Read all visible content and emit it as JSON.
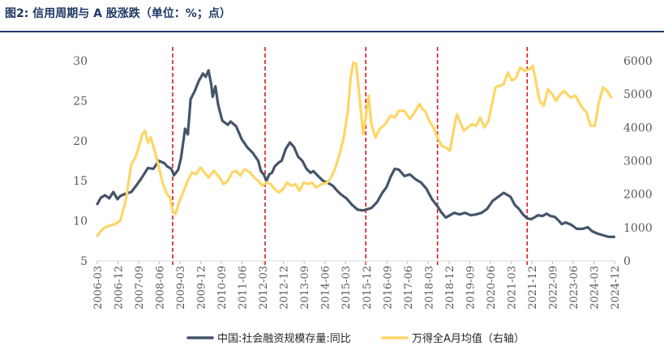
{
  "figure_title": "图2:  信用周期与 A 股涨跌（单位：%；点）",
  "chart_data": {
    "type": "line",
    "title": "信用周期与 A 股涨跌（单位：%；点）",
    "x_tick_labels": [
      "2006-03",
      "2006-12",
      "2007-09",
      "2008-06",
      "2009-03",
      "2009-12",
      "2010-09",
      "2011-06",
      "2012-03",
      "2012-12",
      "2013-09",
      "2014-06",
      "2015-03",
      "2015-12",
      "2016-09",
      "2017-06",
      "2018-03",
      "2018-12",
      "2019-09",
      "2020-06",
      "2021-03",
      "2021-12",
      "2022-09",
      "2023-06",
      "2024-03",
      "2024-12"
    ],
    "x_range": [
      2006.167,
      2024.917
    ],
    "y_left": {
      "label": "%",
      "range": [
        5,
        30
      ],
      "ticks": [
        5,
        10,
        15,
        20,
        25,
        30
      ],
      "tick_labels": [
        "5",
        "10",
        "15",
        "20",
        "25",
        "30"
      ]
    },
    "y_right": {
      "label": "点",
      "range": [
        0,
        6000
      ],
      "ticks": [
        0,
        1000,
        2000,
        3000,
        4000,
        5000,
        6000
      ],
      "tick_labels": [
        "0",
        "1000",
        "2000",
        "3000",
        "4000",
        "5000",
        "6000"
      ]
    },
    "vertical_markers": {
      "style": "dashed",
      "color": "#d7191c",
      "x": [
        2008.9,
        2012.25,
        2015.9,
        2018.5,
        2021.75
      ]
    },
    "series": [
      {
        "name": "中国:社会融资规模存量:同比",
        "axis": "left",
        "color": "#44546a",
        "points": [
          [
            2006.17,
            12.1
          ],
          [
            2006.3,
            12.9
          ],
          [
            2006.45,
            13.2
          ],
          [
            2006.6,
            12.8
          ],
          [
            2006.75,
            13.6
          ],
          [
            2006.9,
            12.7
          ],
          [
            2007.0,
            13.1
          ],
          [
            2007.2,
            13.4
          ],
          [
            2007.4,
            13.6
          ],
          [
            2007.6,
            14.5
          ],
          [
            2007.8,
            15.5
          ],
          [
            2008.0,
            16.6
          ],
          [
            2008.2,
            16.5
          ],
          [
            2008.4,
            17.5
          ],
          [
            2008.6,
            17.2
          ],
          [
            2008.7,
            16.8
          ],
          [
            2008.85,
            16.5
          ],
          [
            2008.95,
            15.7
          ],
          [
            2009.1,
            16.4
          ],
          [
            2009.2,
            17.8
          ],
          [
            2009.35,
            21.5
          ],
          [
            2009.45,
            20.8
          ],
          [
            2009.55,
            25.2
          ],
          [
            2009.7,
            26.2
          ],
          [
            2009.85,
            27.5
          ],
          [
            2010.0,
            28.4
          ],
          [
            2010.1,
            28.0
          ],
          [
            2010.2,
            28.8
          ],
          [
            2010.3,
            27.0
          ],
          [
            2010.35,
            25.5
          ],
          [
            2010.45,
            26.8
          ],
          [
            2010.55,
            24.5
          ],
          [
            2010.7,
            22.5
          ],
          [
            2010.9,
            22.0
          ],
          [
            2011.0,
            22.4
          ],
          [
            2011.2,
            21.8
          ],
          [
            2011.4,
            20.2
          ],
          [
            2011.6,
            19.2
          ],
          [
            2011.8,
            18.5
          ],
          [
            2012.0,
            17.5
          ],
          [
            2012.1,
            16.2
          ],
          [
            2012.2,
            15.8
          ],
          [
            2012.3,
            15.0
          ],
          [
            2012.4,
            15.8
          ],
          [
            2012.5,
            16.0
          ],
          [
            2012.6,
            16.8
          ],
          [
            2012.75,
            17.3
          ],
          [
            2012.85,
            17.5
          ],
          [
            2013.0,
            19.0
          ],
          [
            2013.15,
            19.8
          ],
          [
            2013.3,
            19.2
          ],
          [
            2013.45,
            18.0
          ],
          [
            2013.6,
            17.5
          ],
          [
            2013.75,
            16.5
          ],
          [
            2013.9,
            16.0
          ],
          [
            2014.0,
            16.2
          ],
          [
            2014.2,
            15.5
          ],
          [
            2014.35,
            15.0
          ],
          [
            2014.5,
            14.8
          ],
          [
            2014.6,
            14.6
          ],
          [
            2014.7,
            14.4
          ],
          [
            2014.85,
            13.8
          ],
          [
            2015.0,
            13.3
          ],
          [
            2015.2,
            12.8
          ],
          [
            2015.4,
            12.0
          ],
          [
            2015.6,
            11.4
          ],
          [
            2015.8,
            11.3
          ],
          [
            2016.0,
            11.5
          ],
          [
            2016.1,
            11.6
          ],
          [
            2016.3,
            12.3
          ],
          [
            2016.5,
            13.5
          ],
          [
            2016.65,
            14.2
          ],
          [
            2016.8,
            15.5
          ],
          [
            2016.95,
            16.5
          ],
          [
            2017.1,
            16.4
          ],
          [
            2017.3,
            15.6
          ],
          [
            2017.5,
            15.8
          ],
          [
            2017.7,
            15.2
          ],
          [
            2017.9,
            14.8
          ],
          [
            2018.1,
            14.0
          ],
          [
            2018.3,
            12.7
          ],
          [
            2018.5,
            11.8
          ],
          [
            2018.65,
            11.0
          ],
          [
            2018.8,
            10.4
          ],
          [
            2018.95,
            10.7
          ],
          [
            2019.1,
            11.0
          ],
          [
            2019.3,
            10.8
          ],
          [
            2019.5,
            11.0
          ],
          [
            2019.7,
            10.7
          ],
          [
            2019.9,
            10.8
          ],
          [
            2020.1,
            11.0
          ],
          [
            2020.3,
            11.5
          ],
          [
            2020.5,
            12.5
          ],
          [
            2020.7,
            13.0
          ],
          [
            2020.9,
            13.5
          ],
          [
            2021.0,
            13.3
          ],
          [
            2021.15,
            13.0
          ],
          [
            2021.3,
            12.0
          ],
          [
            2021.45,
            11.5
          ],
          [
            2021.6,
            10.8
          ],
          [
            2021.75,
            10.3
          ],
          [
            2021.9,
            10.2
          ],
          [
            2022.0,
            10.4
          ],
          [
            2022.15,
            10.7
          ],
          [
            2022.3,
            10.6
          ],
          [
            2022.45,
            10.9
          ],
          [
            2022.6,
            10.6
          ],
          [
            2022.75,
            10.5
          ],
          [
            2022.9,
            10.0
          ],
          [
            2023.0,
            9.6
          ],
          [
            2023.15,
            9.8
          ],
          [
            2023.35,
            9.5
          ],
          [
            2023.55,
            9.0
          ],
          [
            2023.75,
            9.0
          ],
          [
            2023.95,
            9.2
          ],
          [
            2024.1,
            8.7
          ],
          [
            2024.3,
            8.4
          ],
          [
            2024.5,
            8.2
          ],
          [
            2024.7,
            8.0
          ],
          [
            2024.9,
            8.0
          ]
        ]
      },
      {
        "name": "万得全A月均值（右轴）",
        "axis": "right",
        "color": "#fdd667",
        "points": [
          [
            2006.17,
            750
          ],
          [
            2006.3,
            900
          ],
          [
            2006.45,
            1000
          ],
          [
            2006.6,
            1050
          ],
          [
            2006.8,
            1100
          ],
          [
            2007.0,
            1200
          ],
          [
            2007.2,
            1800
          ],
          [
            2007.4,
            2900
          ],
          [
            2007.55,
            3100
          ],
          [
            2007.7,
            3500
          ],
          [
            2007.8,
            3800
          ],
          [
            2007.9,
            3900
          ],
          [
            2008.0,
            3550
          ],
          [
            2008.1,
            3700
          ],
          [
            2008.25,
            3300
          ],
          [
            2008.4,
            2800
          ],
          [
            2008.55,
            2300
          ],
          [
            2008.7,
            2000
          ],
          [
            2008.8,
            1900
          ],
          [
            2008.9,
            1500
          ],
          [
            2009.0,
            1400
          ],
          [
            2009.15,
            1800
          ],
          [
            2009.3,
            2100
          ],
          [
            2009.45,
            2400
          ],
          [
            2009.6,
            2650
          ],
          [
            2009.75,
            2600
          ],
          [
            2009.9,
            2800
          ],
          [
            2010.05,
            2650
          ],
          [
            2010.2,
            2500
          ],
          [
            2010.4,
            2700
          ],
          [
            2010.6,
            2500
          ],
          [
            2010.75,
            2300
          ],
          [
            2010.9,
            2400
          ],
          [
            2011.05,
            2650
          ],
          [
            2011.2,
            2700
          ],
          [
            2011.35,
            2550
          ],
          [
            2011.5,
            2750
          ],
          [
            2011.7,
            2650
          ],
          [
            2011.85,
            2500
          ],
          [
            2012.0,
            2400
          ],
          [
            2012.15,
            2250
          ],
          [
            2012.3,
            2350
          ],
          [
            2012.45,
            2300
          ],
          [
            2012.6,
            2150
          ],
          [
            2012.75,
            2050
          ],
          [
            2012.9,
            2150
          ],
          [
            2013.05,
            2350
          ],
          [
            2013.2,
            2250
          ],
          [
            2013.35,
            2300
          ],
          [
            2013.5,
            2100
          ],
          [
            2013.65,
            2350
          ],
          [
            2013.8,
            2300
          ],
          [
            2013.95,
            2350
          ],
          [
            2014.1,
            2200
          ],
          [
            2014.3,
            2300
          ],
          [
            2014.5,
            2350
          ],
          [
            2014.65,
            2500
          ],
          [
            2014.8,
            2800
          ],
          [
            2014.95,
            3200
          ],
          [
            2015.1,
            3700
          ],
          [
            2015.25,
            4500
          ],
          [
            2015.35,
            5500
          ],
          [
            2015.45,
            5950
          ],
          [
            2015.55,
            5900
          ],
          [
            2015.65,
            5100
          ],
          [
            2015.8,
            3800
          ],
          [
            2015.9,
            4300
          ],
          [
            2016.0,
            4950
          ],
          [
            2016.1,
            4100
          ],
          [
            2016.25,
            3700
          ],
          [
            2016.4,
            3950
          ],
          [
            2016.6,
            4100
          ],
          [
            2016.8,
            4350
          ],
          [
            2016.95,
            4300
          ],
          [
            2017.1,
            4500
          ],
          [
            2017.3,
            4500
          ],
          [
            2017.5,
            4250
          ],
          [
            2017.7,
            4500
          ],
          [
            2017.85,
            4700
          ],
          [
            2017.95,
            4550
          ],
          [
            2018.05,
            4500
          ],
          [
            2018.2,
            4200
          ],
          [
            2018.35,
            4000
          ],
          [
            2018.5,
            3700
          ],
          [
            2018.65,
            3450
          ],
          [
            2018.8,
            3400
          ],
          [
            2018.95,
            3300
          ],
          [
            2019.1,
            4000
          ],
          [
            2019.2,
            4400
          ],
          [
            2019.3,
            4200
          ],
          [
            2019.45,
            3900
          ],
          [
            2019.6,
            4000
          ],
          [
            2019.75,
            4100
          ],
          [
            2019.9,
            4050
          ],
          [
            2020.05,
            4300
          ],
          [
            2020.2,
            4000
          ],
          [
            2020.35,
            4200
          ],
          [
            2020.5,
            4800
          ],
          [
            2020.6,
            5200
          ],
          [
            2020.75,
            5250
          ],
          [
            2020.9,
            5300
          ],
          [
            2021.05,
            5650
          ],
          [
            2021.2,
            5400
          ],
          [
            2021.35,
            5500
          ],
          [
            2021.5,
            5800
          ],
          [
            2021.65,
            5700
          ],
          [
            2021.85,
            5750
          ],
          [
            2021.95,
            5850
          ],
          [
            2022.05,
            5450
          ],
          [
            2022.2,
            4800
          ],
          [
            2022.35,
            4650
          ],
          [
            2022.5,
            5150
          ],
          [
            2022.65,
            5000
          ],
          [
            2022.8,
            4800
          ],
          [
            2022.95,
            5000
          ],
          [
            2023.1,
            5100
          ],
          [
            2023.3,
            4900
          ],
          [
            2023.5,
            4950
          ],
          [
            2023.7,
            4650
          ],
          [
            2023.9,
            4450
          ],
          [
            2024.05,
            4050
          ],
          [
            2024.2,
            4050
          ],
          [
            2024.35,
            4750
          ],
          [
            2024.5,
            5200
          ],
          [
            2024.65,
            5100
          ],
          [
            2024.8,
            4900
          ]
        ]
      }
    ]
  }
}
